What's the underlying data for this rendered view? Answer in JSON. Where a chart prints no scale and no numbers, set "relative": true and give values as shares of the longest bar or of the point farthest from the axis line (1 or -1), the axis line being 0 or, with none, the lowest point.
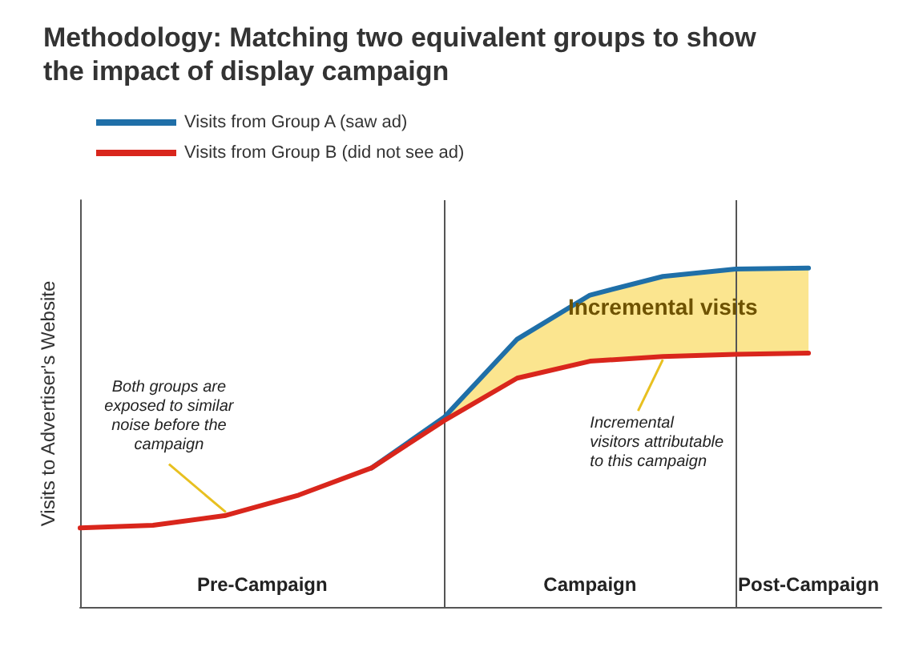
{
  "chart_data": {
    "type": "line",
    "title": "Methodology: Matching two equivalent groups to show the impact of display campaign",
    "ylabel": "Visits to Advertiser's Website",
    "relative": true,
    "categories": [
      null,
      null,
      null,
      null,
      null,
      null,
      null,
      null,
      null,
      null,
      null,
      null
    ],
    "grid": false,
    "legend": "top left",
    "marker": "none",
    "line_style": "solid",
    "series": [
      {
        "name": "Visits from Group A (saw ad)",
        "color": "#1f6fa8",
        "values": [
          null,
          null,
          null,
          null,
          0.41,
          0.56,
          0.79,
          0.92,
          0.975,
          0.997,
          1.0,
          null
        ],
        "lower": [
          null,
          null,
          null,
          null,
          0.41,
          0.55,
          0.675,
          0.725,
          0.739,
          0.745,
          0.749,
          null
        ],
        "upper": [
          null,
          null,
          null,
          null,
          0.41,
          0.56,
          0.79,
          0.92,
          0.975,
          0.997,
          1.0,
          null
        ]
      },
      {
        "name": "Visits from Group B (did not see ad)",
        "color": "#d9261c",
        "values": [
          0.233,
          0.241,
          0.27,
          0.33,
          0.41,
          0.55,
          0.675,
          0.725,
          0.739,
          0.745,
          0.749,
          null
        ]
      }
    ],
    "annotations": [
      "Both groups are\nexposed to similar\nnoise before the\ncampaign",
      "Incremental visits",
      "Incremental\nvisitors attributable\nto this campaign",
      "Pre-Campaign",
      "Campaign",
      "Post-Campaign"
    ]
  }
}
